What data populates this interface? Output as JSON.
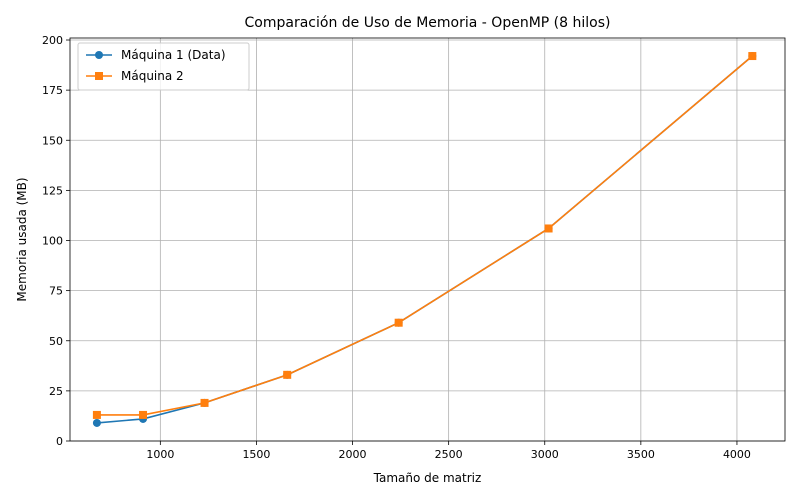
{
  "chart_data": {
    "type": "line",
    "title": "Comparación de Uso de Memoria - OpenMP (8 hilos)",
    "xlabel": "Tamaño de matriz",
    "ylabel": "Memoria usada (MB)",
    "xlim": [
      530,
      4250
    ],
    "ylim": [
      0,
      201
    ],
    "xticks": [
      1000,
      1500,
      2000,
      2500,
      3000,
      3500,
      4000
    ],
    "yticks": [
      0,
      25,
      50,
      75,
      100,
      125,
      150,
      175,
      200
    ],
    "grid": true,
    "legend_position": "top-left",
    "series": [
      {
        "name": "Máquina 1 (Data)",
        "color": "#1f77b4",
        "marker": "circle",
        "x": [
          670,
          910,
          1230,
          1660,
          2240,
          3020,
          4080
        ],
        "y": [
          9,
          11,
          19,
          33,
          59,
          106,
          192
        ]
      },
      {
        "name": "Máquina 2",
        "color": "#ff7f0e",
        "marker": "square",
        "x": [
          670,
          910,
          1230,
          1660,
          2240,
          3020,
          4080
        ],
        "y": [
          13,
          13,
          19,
          33,
          59,
          106,
          192
        ]
      }
    ]
  }
}
